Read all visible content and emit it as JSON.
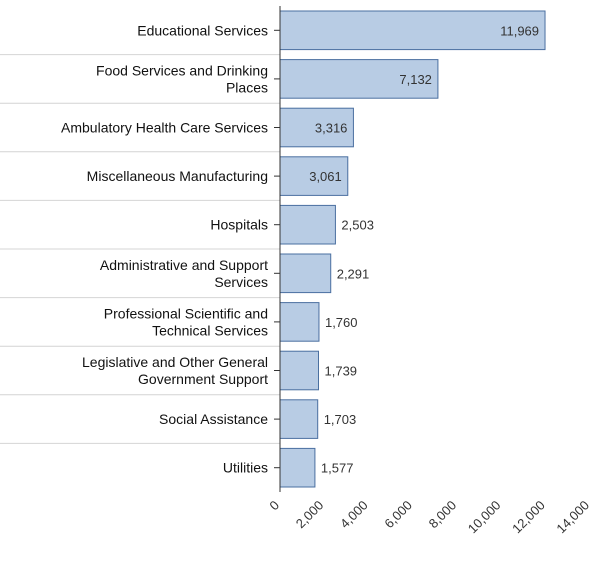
{
  "chart_data": {
    "type": "bar",
    "orientation": "horizontal",
    "categories": [
      [
        "Educational Services"
      ],
      [
        "Food Services and Drinking",
        "Places"
      ],
      [
        "Ambulatory Health Care Services"
      ],
      [
        "Miscellaneous Manufacturing"
      ],
      [
        "Hospitals"
      ],
      [
        "Administrative and Support",
        "Services"
      ],
      [
        "Professional Scientific and",
        "Technical Services"
      ],
      [
        "Legislative and Other General",
        "Government Support"
      ],
      [
        "Social Assistance"
      ],
      [
        "Utilities"
      ]
    ],
    "values": [
      11969,
      7132,
      3316,
      3061,
      2503,
      2291,
      1760,
      1739,
      1703,
      1577
    ],
    "value_labels": [
      "11,969",
      "7,132",
      "3,316",
      "3,061",
      "2,503",
      "2,291",
      "1,760",
      "1,739",
      "1,703",
      "1,577"
    ],
    "xlim": [
      0,
      14000
    ],
    "x_ticks": [
      0,
      2000,
      4000,
      6000,
      8000,
      10000,
      12000,
      14000
    ],
    "x_tick_labels": [
      "0",
      "2,000",
      "4,000",
      "6,000",
      "8,000",
      "10,000",
      "12,000",
      "14,000"
    ],
    "title": "",
    "xlabel": "",
    "ylabel": "",
    "grid": false,
    "bar_color": "#b8cce4",
    "bar_border_color": "#4a6fa0",
    "separator_color": "#d4d4d4"
  }
}
